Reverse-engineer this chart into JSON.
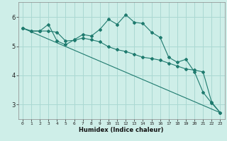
{
  "xlabel": "Humidex (Indice chaleur)",
  "background_color": "#ceeee8",
  "grid_color": "#aad8d2",
  "line_color": "#1e7a6e",
  "xlim": [
    -0.5,
    23.5
  ],
  "ylim": [
    2.5,
    6.5
  ],
  "yticks": [
    3,
    4,
    5,
    6
  ],
  "xticks": [
    0,
    1,
    2,
    3,
    4,
    5,
    6,
    7,
    8,
    9,
    10,
    11,
    12,
    13,
    14,
    15,
    16,
    17,
    18,
    19,
    20,
    21,
    22,
    23
  ],
  "line1_x": [
    0,
    1,
    2,
    3,
    4,
    5,
    6,
    7,
    8,
    9,
    10,
    11,
    12,
    13,
    14,
    15,
    16,
    17,
    18,
    19,
    20,
    21,
    22,
    23
  ],
  "line1_y": [
    5.62,
    5.52,
    5.52,
    5.52,
    5.48,
    5.18,
    5.2,
    5.28,
    5.22,
    5.15,
    4.98,
    4.88,
    4.82,
    4.72,
    4.62,
    4.58,
    4.52,
    4.42,
    4.32,
    4.22,
    4.18,
    4.12,
    3.08,
    2.72
  ],
  "line2_x": [
    0,
    1,
    2,
    3,
    4,
    5,
    6,
    7,
    8,
    9,
    10,
    11,
    12,
    13,
    14,
    15,
    16,
    17,
    18,
    19,
    20,
    21,
    22,
    23
  ],
  "line2_y": [
    5.62,
    5.52,
    5.52,
    5.75,
    5.18,
    5.05,
    5.22,
    5.4,
    5.35,
    5.58,
    5.92,
    5.75,
    6.08,
    5.82,
    5.78,
    5.48,
    5.3,
    4.62,
    4.45,
    4.55,
    4.12,
    3.42,
    3.05,
    2.72
  ],
  "line3_x": [
    0,
    23
  ],
  "line3_y": [
    5.62,
    2.72
  ]
}
